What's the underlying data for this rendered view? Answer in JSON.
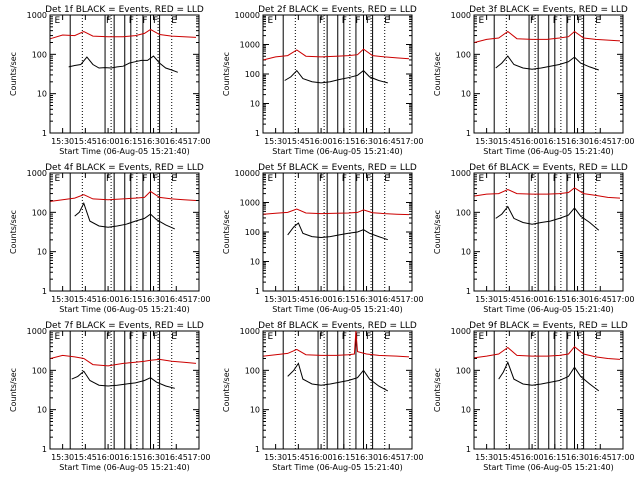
{
  "colors": {
    "events": "#000000",
    "lld": "#cc0000",
    "axes": "#000000",
    "background": "#ffffff"
  },
  "common": {
    "ylabel": "Counts/sec",
    "xlabel": "Start Time (06-Aug-05 15:21:40)",
    "xticks": [
      "15:30",
      "15:45",
      "16:00",
      "16:15",
      "16:30",
      "16:45",
      "17:00"
    ],
    "yticks": [
      "1",
      "10",
      "100",
      "1000"
    ],
    "flags": [
      "E",
      "F",
      "F",
      "F",
      "F",
      "E"
    ]
  },
  "chart_data": [
    {
      "type": "line",
      "title": "Det 1f BLACK = Events, RED = LLD",
      "ylim": [
        1,
        1000
      ],
      "xlim": [
        "15:21:40",
        "17:00"
      ],
      "yscale": "log",
      "series": [
        {
          "name": "Events",
          "x": [
            "15:34",
            "15:38",
            "15:42",
            "15:46",
            "15:50",
            "15:54",
            "15:58",
            "16:02",
            "16:06",
            "16:10",
            "16:14",
            "16:18",
            "16:22",
            "16:26",
            "16:30",
            "16:34",
            "16:38",
            "16:42",
            "16:46"
          ],
          "values": [
            48,
            52,
            55,
            85,
            55,
            45,
            46,
            45,
            48,
            50,
            60,
            65,
            70,
            70,
            90,
            60,
            45,
            40,
            35
          ]
        },
        {
          "name": "LLD",
          "x": [
            "15:22",
            "15:30",
            "15:38",
            "15:44",
            "15:50",
            "16:00",
            "16:10",
            "16:18",
            "16:24",
            "16:28",
            "16:34",
            "16:42",
            "16:50",
            "16:58"
          ],
          "values": [
            250,
            310,
            300,
            380,
            290,
            280,
            280,
            300,
            340,
            430,
            320,
            290,
            280,
            270
          ]
        }
      ]
    },
    {
      "type": "line",
      "title": "Det 2f BLACK = Events, RED = LLD",
      "ylim": [
        1,
        10000
      ],
      "xlim": [
        "15:21:40",
        "17:00"
      ],
      "yscale": "log",
      "series": [
        {
          "name": "Events",
          "x": [
            "15:36",
            "15:40",
            "15:44",
            "15:48",
            "15:54",
            "16:00",
            "16:06",
            "16:12",
            "16:18",
            "16:24",
            "16:28",
            "16:32",
            "16:38",
            "16:44"
          ],
          "values": [
            60,
            80,
            130,
            70,
            55,
            50,
            55,
            65,
            75,
            90,
            130,
            80,
            60,
            50
          ]
        },
        {
          "name": "LLD",
          "x": [
            "15:22",
            "15:30",
            "15:38",
            "15:44",
            "15:50",
            "16:00",
            "16:10",
            "16:18",
            "16:24",
            "16:28",
            "16:34",
            "16:42",
            "16:50",
            "16:58"
          ],
          "values": [
            300,
            380,
            420,
            650,
            400,
            380,
            400,
            420,
            450,
            700,
            420,
            380,
            350,
            330
          ]
        }
      ]
    },
    {
      "type": "line",
      "title": "Det 3f BLACK = Events, RED = LLD",
      "ylim": [
        1,
        1000
      ],
      "xlim": [
        "15:21:40",
        "17:00"
      ],
      "yscale": "log",
      "series": [
        {
          "name": "Events",
          "x": [
            "15:36",
            "15:40",
            "15:44",
            "15:48",
            "15:54",
            "16:00",
            "16:06",
            "16:12",
            "16:18",
            "16:24",
            "16:28",
            "16:32",
            "16:38",
            "16:44"
          ],
          "values": [
            45,
            60,
            90,
            55,
            45,
            42,
            45,
            50,
            55,
            65,
            85,
            60,
            48,
            40
          ]
        },
        {
          "name": "LLD",
          "x": [
            "15:22",
            "15:30",
            "15:38",
            "15:44",
            "15:50",
            "16:00",
            "16:10",
            "16:18",
            "16:24",
            "16:28",
            "16:34",
            "16:42",
            "16:50",
            "16:58"
          ],
          "values": [
            200,
            240,
            260,
            380,
            250,
            240,
            240,
            260,
            280,
            380,
            260,
            240,
            230,
            220
          ]
        }
      ]
    },
    {
      "type": "line",
      "title": "Det 4f BLACK = Events, RED = LLD",
      "ylim": [
        1,
        1000
      ],
      "xlim": [
        "15:21:40",
        "17:00"
      ],
      "yscale": "log",
      "series": [
        {
          "name": "Events",
          "x": [
            "15:38",
            "15:41",
            "15:44",
            "15:48",
            "15:54",
            "16:00",
            "16:06",
            "16:12",
            "16:18",
            "16:24",
            "16:28",
            "16:32",
            "16:38",
            "16:44"
          ],
          "values": [
            80,
            100,
            170,
            60,
            45,
            42,
            45,
            50,
            60,
            70,
            90,
            65,
            48,
            38
          ]
        },
        {
          "name": "LLD",
          "x": [
            "15:22",
            "15:30",
            "15:38",
            "15:44",
            "15:50",
            "16:00",
            "16:10",
            "16:18",
            "16:24",
            "16:28",
            "16:34",
            "16:42",
            "16:50",
            "16:58"
          ],
          "values": [
            190,
            210,
            230,
            280,
            220,
            210,
            220,
            230,
            240,
            340,
            240,
            220,
            210,
            200
          ]
        }
      ]
    },
    {
      "type": "line",
      "title": "Det 5f BLACK = Events, RED = LLD",
      "ylim": [
        1,
        10000
      ],
      "xlim": [
        "15:21:40",
        "17:00"
      ],
      "yscale": "log",
      "series": [
        {
          "name": "Events",
          "x": [
            "15:38",
            "15:42",
            "15:45",
            "15:48",
            "15:54",
            "16:00",
            "16:06",
            "16:12",
            "16:18",
            "16:24",
            "16:28",
            "16:32",
            "16:38",
            "16:44"
          ],
          "values": [
            80,
            150,
            200,
            90,
            70,
            65,
            70,
            80,
            90,
            100,
            120,
            90,
            70,
            55
          ]
        },
        {
          "name": "LLD",
          "x": [
            "15:22",
            "15:30",
            "15:38",
            "15:44",
            "15:50",
            "16:00",
            "16:10",
            "16:18",
            "16:24",
            "16:28",
            "16:34",
            "16:42",
            "16:50",
            "16:58"
          ],
          "values": [
            400,
            430,
            460,
            600,
            440,
            420,
            430,
            440,
            460,
            560,
            450,
            420,
            400,
            390
          ]
        }
      ]
    },
    {
      "type": "line",
      "title": "Det 6f BLACK = Events, RED = LLD",
      "ylim": [
        1,
        1000
      ],
      "xlim": [
        "15:21:40",
        "17:00"
      ],
      "yscale": "log",
      "series": [
        {
          "name": "Events",
          "x": [
            "15:36",
            "15:40",
            "15:44",
            "15:48",
            "15:54",
            "16:00",
            "16:06",
            "16:12",
            "16:18",
            "16:24",
            "16:28",
            "16:32",
            "16:38",
            "16:44"
          ],
          "values": [
            70,
            90,
            140,
            70,
            55,
            50,
            55,
            60,
            70,
            85,
            130,
            80,
            55,
            35
          ]
        },
        {
          "name": "LLD",
          "x": [
            "15:22",
            "15:30",
            "15:38",
            "15:44",
            "15:50",
            "16:00",
            "16:10",
            "16:18",
            "16:24",
            "16:28",
            "16:34",
            "16:42",
            "16:50",
            "16:58"
          ],
          "values": [
            260,
            290,
            300,
            380,
            300,
            290,
            290,
            300,
            320,
            420,
            300,
            270,
            240,
            230
          ]
        }
      ]
    },
    {
      "type": "line",
      "title": "Det 7f BLACK = Events, RED = LLD",
      "ylim": [
        1,
        1000
      ],
      "xlim": [
        "15:21:40",
        "17:00"
      ],
      "yscale": "log",
      "series": [
        {
          "name": "Events",
          "x": [
            "15:36",
            "15:40",
            "15:44",
            "15:48",
            "15:54",
            "16:00",
            "16:06",
            "16:12",
            "16:18",
            "16:24",
            "16:28",
            "16:32",
            "16:38",
            "16:44"
          ],
          "values": [
            60,
            70,
            95,
            55,
            42,
            40,
            42,
            45,
            48,
            55,
            65,
            50,
            40,
            35
          ]
        },
        {
          "name": "LLD",
          "x": [
            "15:22",
            "15:30",
            "15:38",
            "15:44",
            "15:50",
            "16:00",
            "16:10",
            "16:18",
            "16:24",
            "16:28",
            "16:34",
            "16:42",
            "16:50",
            "16:58"
          ],
          "values": [
            200,
            240,
            220,
            200,
            140,
            130,
            150,
            160,
            170,
            180,
            190,
            170,
            160,
            150
          ]
        }
      ]
    },
    {
      "type": "line",
      "title": "Det 8f BLACK = Events, RED = LLD",
      "ylim": [
        1,
        1000
      ],
      "xlim": [
        "15:21:40",
        "17:00"
      ],
      "yscale": "log",
      "series": [
        {
          "name": "Events",
          "x": [
            "15:38",
            "15:42",
            "15:45",
            "15:48",
            "15:54",
            "16:00",
            "16:06",
            "16:12",
            "16:18",
            "16:24",
            "16:28",
            "16:32",
            "16:38",
            "16:44"
          ],
          "values": [
            70,
            100,
            150,
            60,
            45,
            42,
            45,
            50,
            55,
            65,
            100,
            60,
            40,
            30
          ]
        },
        {
          "name": "LLD",
          "x": [
            "15:22",
            "15:30",
            "15:38",
            "15:44",
            "15:50",
            "16:00",
            "16:10",
            "16:18",
            "16:22",
            "16:23",
            "16:24",
            "16:30",
            "16:38",
            "16:50",
            "16:58"
          ],
          "values": [
            230,
            250,
            270,
            340,
            250,
            240,
            240,
            250,
            260,
            1000,
            300,
            260,
            240,
            230,
            220
          ]
        }
      ]
    },
    {
      "type": "line",
      "title": "Det 9f BLACK = Events, RED = LLD",
      "ylim": [
        1,
        1000
      ],
      "xlim": [
        "15:21:40",
        "17:00"
      ],
      "yscale": "log",
      "series": [
        {
          "name": "Events",
          "x": [
            "15:38",
            "15:41",
            "15:44",
            "15:48",
            "15:54",
            "16:00",
            "16:06",
            "16:12",
            "16:18",
            "16:24",
            "16:28",
            "16:32",
            "16:38",
            "16:44"
          ],
          "values": [
            60,
            90,
            160,
            60,
            45,
            42,
            45,
            50,
            55,
            70,
            120,
            70,
            45,
            30
          ]
        },
        {
          "name": "LLD",
          "x": [
            "15:22",
            "15:30",
            "15:38",
            "15:44",
            "15:50",
            "16:00",
            "16:10",
            "16:18",
            "16:24",
            "16:28",
            "16:34",
            "16:42",
            "16:50",
            "16:58"
          ],
          "values": [
            210,
            230,
            260,
            380,
            240,
            230,
            230,
            240,
            260,
            400,
            260,
            220,
            200,
            190
          ]
        }
      ]
    }
  ],
  "markers": {
    "solid_times": [
      "15:35",
      "15:58",
      "16:04",
      "16:11",
      "16:15",
      "16:23",
      "16:28",
      "16:34"
    ],
    "dotted_times": [
      "15:43",
      "16:02",
      "16:19",
      "16:33",
      "16:42"
    ],
    "flag_times": [
      "15:24",
      "15:58",
      "16:13",
      "16:22",
      "16:29",
      "16:41"
    ]
  }
}
